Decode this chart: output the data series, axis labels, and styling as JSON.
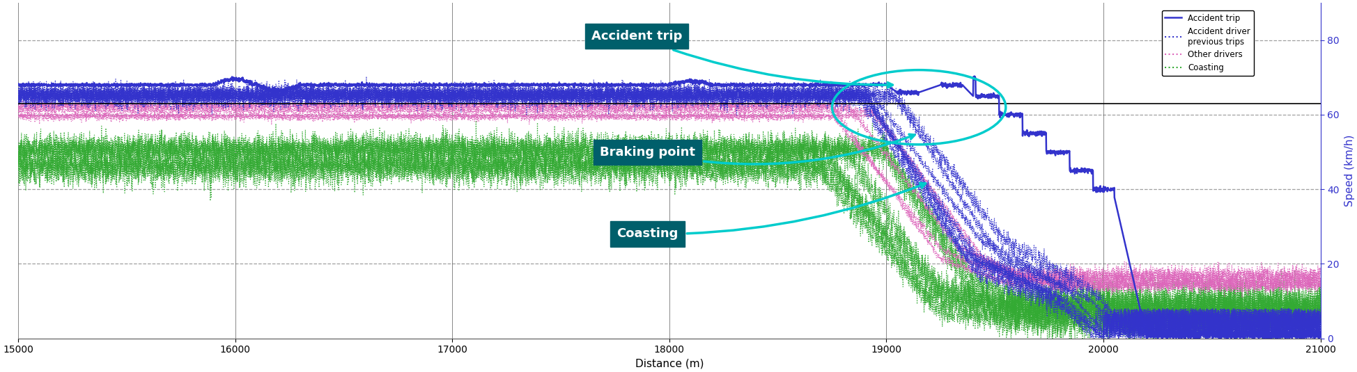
{
  "xlim": [
    15000,
    21000
  ],
  "ylim": [
    0,
    90
  ],
  "yticks": [
    0,
    20,
    40,
    60,
    80
  ],
  "xticks": [
    15000,
    16000,
    17000,
    18000,
    19000,
    20000,
    21000
  ],
  "xlabel": "Distance (m)",
  "ylabel": "Speed (km/h)",
  "accident_trip_color": "#3333cc",
  "prev_trips_color": "#3333cc",
  "other_drivers_color": "#dd66bb",
  "coasting_color": "#33aa33",
  "bg_color": "#ffffff",
  "grid_color": "#888888",
  "annotation_bg": "#005f6b",
  "annotation_text_color": "#ffffff",
  "circle_color": "#00cccc",
  "arrow_color": "#00cccc",
  "speed_limit_color": "#000000",
  "accident_base_speed": 68,
  "prev_base_speed": 64,
  "other_base_speed": 61,
  "coasting_base_speed_hi": 50,
  "coasting_base_speed_lo": 46,
  "braking_start": 19000,
  "speed_limit_line": 63
}
